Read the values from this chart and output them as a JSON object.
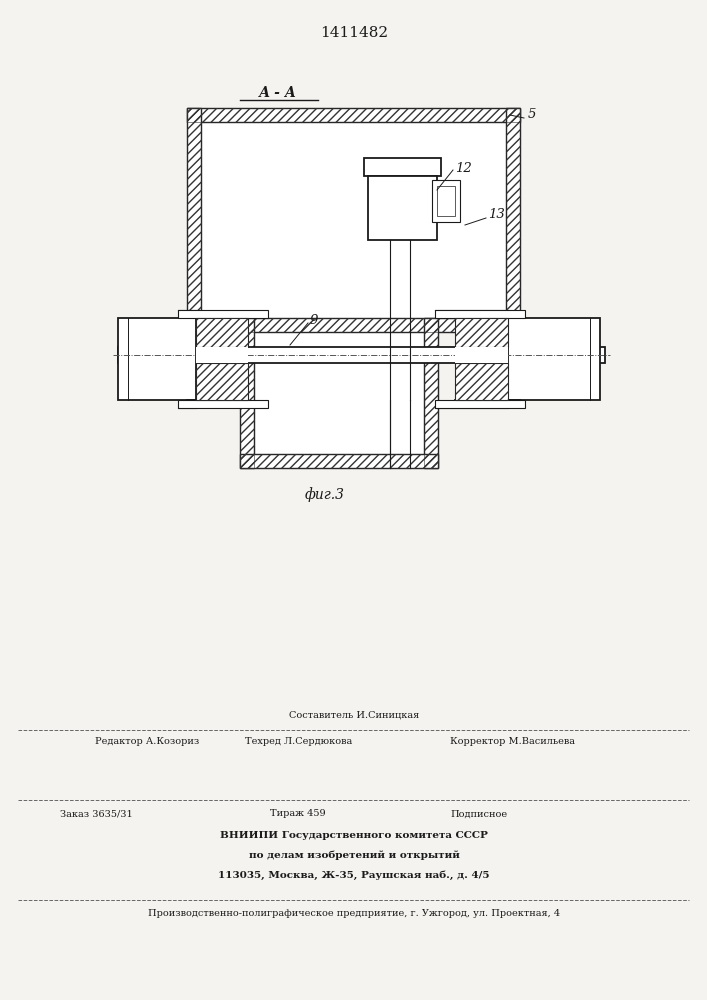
{
  "patent_number": "1411482",
  "section_label": "А - А",
  "fig_label": "фиг.3",
  "bg_color": "#f5f3f0",
  "line_color": "#1a1a1a",
  "hatch_color": "#333333",
  "footer_sestavitel": "Составитель И.Синицкая",
  "footer_redaktor": "Редактор А.Козориз",
  "footer_tehred": "Техред Л.Сердюкова",
  "footer_korrektor": "Корректор М.Васильева",
  "footer_zakaz": "Заказ 3635/31",
  "footer_tirazh": "Тираж 459",
  "footer_podpisnoe": "Подписное",
  "footer_vniip1": "ВНИИПИ Государственного комитета СССР",
  "footer_vniip2": "по делам изобретений и открытий",
  "footer_addr": "113035, Москва, Ж-35, Раушская наб., д. 4/5",
  "footer_uzh": "Производственно-полиграфическое предприятие, г. Ужгород, ул. Проектная, 4"
}
